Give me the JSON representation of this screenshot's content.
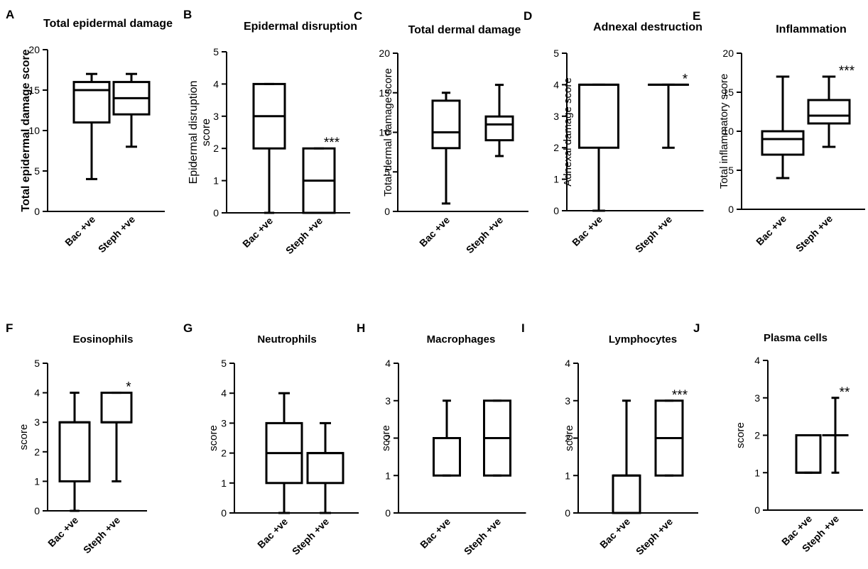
{
  "figure": {
    "background": "#ffffff",
    "line_color": "#000000"
  },
  "chart_data": [
    {
      "type": "box",
      "panel": "A",
      "title": "Total epidermal damage",
      "ylabel": "Total epidermal damage score",
      "ylim": [
        0,
        20
      ],
      "yticks": [
        "0",
        "5",
        "10",
        "15",
        "20"
      ],
      "categories": [
        "Bac +ve",
        "Steph +ve"
      ],
      "boxes": [
        {
          "min": 4,
          "q1": 11,
          "median": 15,
          "q3": 16,
          "max": 17
        },
        {
          "min": 8,
          "q1": 12,
          "median": 14,
          "q3": 16,
          "max": 17
        }
      ],
      "significance": ""
    },
    {
      "type": "box",
      "panel": "B",
      "title": "Epidermal disruption",
      "ylabel": "Epidermal disruption score",
      "ylim": [
        0,
        5
      ],
      "yticks": [
        "0",
        "1",
        "2",
        "3",
        "4",
        "5"
      ],
      "categories": [
        "Bac +ve",
        "Steph +ve"
      ],
      "boxes": [
        {
          "min": 0,
          "q1": 2,
          "median": 3,
          "q3": 4,
          "max": 4
        },
        {
          "min": 0,
          "q1": 0,
          "median": 1,
          "q3": 2,
          "max": 2
        }
      ],
      "significance": "***"
    },
    {
      "type": "box",
      "panel": "C",
      "title": "Total dermal damage",
      "ylabel": "Total dermal damage score",
      "ylim": [
        0,
        20
      ],
      "yticks": [
        "0",
        "5",
        "10",
        "15",
        "20"
      ],
      "categories": [
        "Bac +ve",
        "Steph +ve"
      ],
      "boxes": [
        {
          "min": 1,
          "q1": 8,
          "median": 10,
          "q3": 14,
          "max": 15
        },
        {
          "min": 7,
          "q1": 9,
          "median": 11,
          "q3": 12,
          "max": 16
        }
      ],
      "significance": ""
    },
    {
      "type": "box",
      "panel": "D",
      "title": "Adnexal destruction",
      "ylabel": "Adnexal damage score",
      "ylim": [
        0,
        5
      ],
      "yticks": [
        "0",
        "1",
        "2",
        "3",
        "4",
        "5"
      ],
      "categories": [
        "Bac +ve",
        "Steph +ve"
      ],
      "boxes": [
        {
          "min": 0,
          "q1": 2,
          "median": 4,
          "q3": 4,
          "max": 4
        },
        {
          "min": 2,
          "q1": 4,
          "median": 4,
          "q3": 4,
          "max": 4
        }
      ],
      "significance": "*"
    },
    {
      "type": "box",
      "panel": "E",
      "title": "Inflammation",
      "ylabel": "Total inflammatory score",
      "ylim": [
        0,
        20
      ],
      "yticks": [
        "0",
        "5",
        "10",
        "15",
        "20"
      ],
      "categories": [
        "Bac +ve",
        "Steph +ve"
      ],
      "boxes": [
        {
          "min": 4,
          "q1": 7,
          "median": 9,
          "q3": 10,
          "max": 17
        },
        {
          "min": 8,
          "q1": 11,
          "median": 12,
          "q3": 14,
          "max": 17
        }
      ],
      "significance": "***"
    },
    {
      "type": "box",
      "panel": "F",
      "title": "Eosinophils",
      "ylabel": "score",
      "ylim": [
        0,
        5
      ],
      "yticks": [
        "0",
        "1",
        "2",
        "3",
        "4",
        "5"
      ],
      "categories": [
        "Bac +ve",
        "Steph +ve"
      ],
      "boxes": [
        {
          "min": 0,
          "q1": 1,
          "median": 3,
          "q3": 3,
          "max": 4
        },
        {
          "min": 1,
          "q1": 3,
          "median": 3,
          "q3": 4,
          "max": 4
        }
      ],
      "significance": "*"
    },
    {
      "type": "box",
      "panel": "G",
      "title": "Neutrophils",
      "ylabel": "score",
      "ylim": [
        0,
        5
      ],
      "yticks": [
        "0",
        "1",
        "2",
        "3",
        "4",
        "5"
      ],
      "categories": [
        "Bac +ve",
        "Steph +ve"
      ],
      "boxes": [
        {
          "min": 0,
          "q1": 1,
          "median": 2,
          "q3": 3,
          "max": 4
        },
        {
          "min": 0,
          "q1": 1,
          "median": 2,
          "q3": 2,
          "max": 3
        }
      ],
      "significance": ""
    },
    {
      "type": "box",
      "panel": "H",
      "title": "Macrophages",
      "ylabel": "score",
      "ylim": [
        0,
        4
      ],
      "yticks": [
        "0",
        "1",
        "2",
        "3",
        "4"
      ],
      "categories": [
        "Bac +ve",
        "Steph +ve"
      ],
      "boxes": [
        {
          "min": 1,
          "q1": 1,
          "median": 2,
          "q3": 2,
          "max": 3
        },
        {
          "min": 1,
          "q1": 1,
          "median": 2,
          "q3": 3,
          "max": 3
        }
      ],
      "significance": ""
    },
    {
      "type": "box",
      "panel": "I",
      "title": "Lymphocytes",
      "ylabel": "score",
      "ylim": [
        0,
        4
      ],
      "yticks": [
        "0",
        "1",
        "2",
        "3",
        "4"
      ],
      "categories": [
        "Bac +ve",
        "Steph +ve"
      ],
      "boxes": [
        {
          "min": 0,
          "q1": 0,
          "median": 1,
          "q3": 1,
          "max": 3
        },
        {
          "min": 1,
          "q1": 1,
          "median": 2,
          "q3": 3,
          "max": 3
        }
      ],
      "significance": "***"
    },
    {
      "type": "box",
      "panel": "J",
      "title": "Plasma cells",
      "ylabel": "score",
      "ylim": [
        0,
        4
      ],
      "yticks": [
        "0",
        "1",
        "2",
        "3",
        "4"
      ],
      "categories": [
        "Bac +ve",
        "Steph +ve"
      ],
      "boxes": [
        {
          "min": 1,
          "q1": 1,
          "median": 1,
          "q3": 2,
          "max": 2
        },
        {
          "min": 1,
          "q1": 2,
          "median": 2,
          "q3": 2,
          "max": 3
        }
      ],
      "significance": "**"
    }
  ]
}
